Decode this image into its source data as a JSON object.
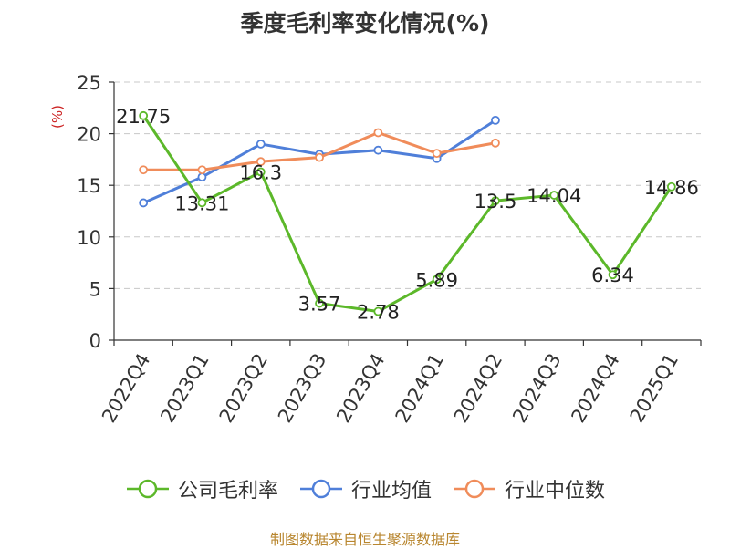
{
  "chart_data": {
    "type": "line",
    "title": "季度毛利率变化情况(%)",
    "ylabel": "(%)",
    "xlabel": "",
    "ylim": [
      0,
      25
    ],
    "yticks": [
      0,
      5,
      10,
      15,
      20,
      25
    ],
    "grid": true,
    "legend_position": "bottom",
    "categories": [
      "2022Q4",
      "2023Q1",
      "2023Q2",
      "2023Q3",
      "2023Q4",
      "2024Q1",
      "2024Q2",
      "2024Q3",
      "2024Q4",
      "2025Q1"
    ],
    "series": [
      {
        "name": "公司毛利率",
        "color": "#5cb82a",
        "show_labels": true,
        "values": [
          21.75,
          13.31,
          16.3,
          3.57,
          2.78,
          5.89,
          13.5,
          14.04,
          6.34,
          14.86
        ]
      },
      {
        "name": "行业均值",
        "color": "#4f7fd9",
        "show_labels": false,
        "values": [
          13.3,
          15.8,
          19.0,
          18.0,
          18.4,
          17.6,
          21.3,
          null,
          null,
          null
        ]
      },
      {
        "name": "行业中位数",
        "color": "#f08c5a",
        "show_labels": false,
        "values": [
          16.5,
          16.5,
          17.3,
          17.7,
          20.1,
          18.1,
          19.1,
          null,
          null,
          null
        ]
      }
    ]
  },
  "footer": "制图数据来自恒生聚源数据库"
}
